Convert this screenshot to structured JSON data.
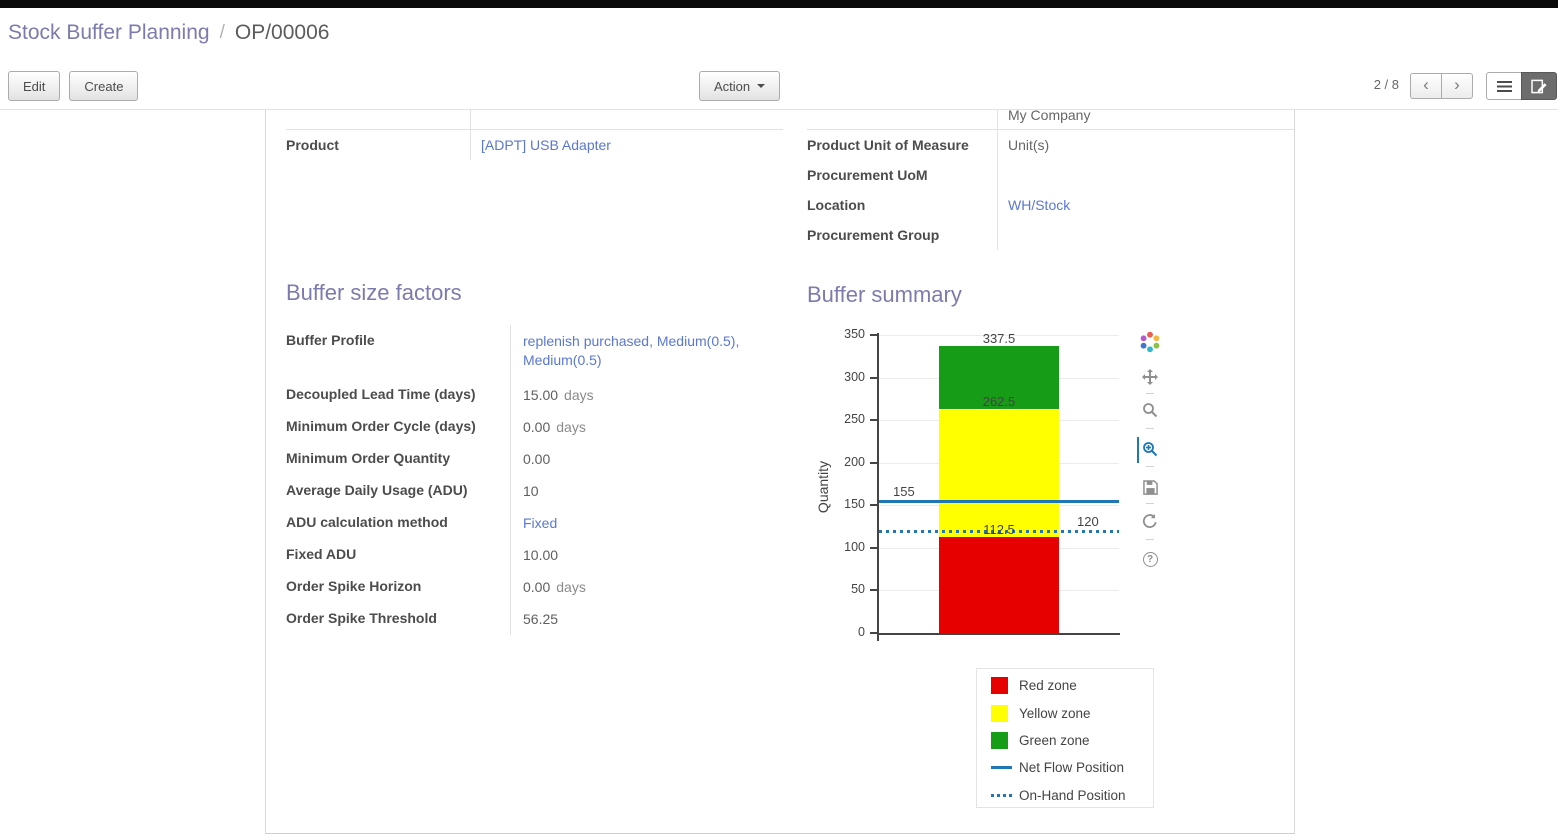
{
  "breadcrumb": {
    "parent": "Stock Buffer Planning",
    "separator": "/",
    "current": "OP/00006"
  },
  "toolbar": {
    "edit": "Edit",
    "create": "Create",
    "action": "Action",
    "pager": "2 / 8"
  },
  "form": {
    "clipped_row": {
      "value": "My Company"
    },
    "product": {
      "label": "Product",
      "value": "[ADPT] USB Adapter"
    },
    "right_rows": [
      {
        "label": "Product Unit of Measure",
        "value": "Unit(s)"
      },
      {
        "label": "Procurement UoM",
        "value": ""
      },
      {
        "label": "Location",
        "value": "WH/Stock"
      },
      {
        "label": "Procurement Group",
        "value": ""
      }
    ]
  },
  "buffer_factors": {
    "title": "Buffer size factors",
    "rows": [
      {
        "label": "Buffer Profile",
        "value": "replenish purchased, Medium(0.5), Medium(0.5)"
      },
      {
        "label": "Decoupled Lead Time (days)",
        "value": "15.00",
        "suffix": "days"
      },
      {
        "label": "Minimum Order Cycle (days)",
        "value": "0.00",
        "suffix": "days"
      },
      {
        "label": "Minimum Order Quantity",
        "value": "0.00"
      },
      {
        "label": "Average Daily Usage (ADU)",
        "value": "10"
      },
      {
        "label": "ADU calculation method",
        "value": "Fixed"
      },
      {
        "label": "Fixed ADU",
        "value": "10.00"
      },
      {
        "label": "Order Spike Horizon",
        "value": "0.00",
        "suffix": "days"
      },
      {
        "label": "Order Spike Threshold",
        "value": "56.25"
      }
    ]
  },
  "buffer_summary": {
    "title": "Buffer summary"
  },
  "chart_data": {
    "type": "bar",
    "title": "Buffer summary",
    "xlabel": "",
    "ylabel": "Quantity",
    "ylim": [
      0,
      350
    ],
    "yticks": [
      0,
      50,
      100,
      150,
      200,
      250,
      300,
      350
    ],
    "grid": true,
    "legend_position": "bottom-right",
    "zones": [
      {
        "name": "Red zone",
        "from": 0,
        "to": 112.5,
        "color": "#e60000"
      },
      {
        "name": "Yellow zone",
        "from": 112.5,
        "to": 262.5,
        "color": "#ffff00"
      },
      {
        "name": "Green zone",
        "from": 262.5,
        "to": 337.5,
        "color": "#169c16"
      }
    ],
    "lines": [
      {
        "name": "Net Flow Position",
        "value": 155,
        "style": "solid",
        "color": "#1f77b4"
      },
      {
        "name": "On-Hand Position",
        "value": 120,
        "style": "dotted",
        "color": "#1f77b4"
      }
    ],
    "annotations": [
      {
        "text": "337.5",
        "at": 337.5,
        "x": 188,
        "dy": -15,
        "center": true
      },
      {
        "text": "262.5",
        "at": 262.5,
        "x": 188,
        "dy": -16,
        "center": true
      },
      {
        "text": "155",
        "at": 155,
        "x": 82,
        "dy": -17,
        "center": false
      },
      {
        "text": "120",
        "at": 120,
        "x": 266,
        "dy": -17,
        "center": false
      },
      {
        "text": "112.5",
        "at": 120,
        "x": 188,
        "dy": -9,
        "center": true
      }
    ],
    "legend": [
      "Red zone",
      "Yellow zone",
      "Green zone",
      "Net Flow Position",
      "On-Hand Position"
    ]
  }
}
